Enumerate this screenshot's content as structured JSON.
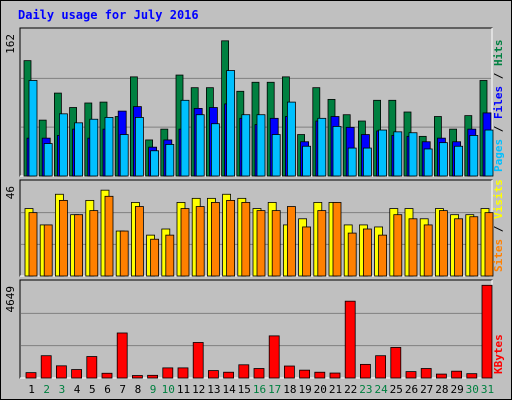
{
  "title": "Daily usage for July 2016",
  "colors": {
    "hits": "#008040",
    "files": "#0000ff",
    "pages": "#00c0ff",
    "visits": "#ffff00",
    "sites": "#ff8000",
    "kbytes": "#ff0000",
    "weekend_day_label": "#008040",
    "weekday_day_label": "#000000"
  },
  "chart_data": [
    {
      "type": "bar",
      "categories": [
        "1",
        "2",
        "3",
        "4",
        "5",
        "6",
        "7",
        "8",
        "9",
        "10",
        "11",
        "12",
        "13",
        "14",
        "15",
        "16",
        "17",
        "18",
        "19",
        "20",
        "21",
        "22",
        "23",
        "24",
        "25",
        "26",
        "27",
        "28",
        "29",
        "30",
        "31"
      ],
      "weekend_days": [
        "2",
        "3",
        "9",
        "10",
        "16",
        "17",
        "23",
        "24",
        "30",
        "31"
      ],
      "ylim": [
        0,
        162
      ],
      "ymax_label": "162",
      "series_labels": [
        "Pages",
        "Files",
        "Hits"
      ],
      "series": [
        {
          "name": "Hits",
          "values": [
            128,
            62,
            92,
            76,
            81,
            82,
            66,
            110,
            40,
            52,
            112,
            98,
            98,
            150,
            94,
            104,
            104,
            110,
            46,
            98,
            85,
            68,
            61,
            84,
            84,
            71,
            44,
            66,
            52,
            67,
            106
          ]
        },
        {
          "name": "Files",
          "values": [
            42,
            42,
            45,
            52,
            42,
            52,
            72,
            77,
            32,
            40,
            52,
            75,
            76,
            80,
            64,
            57,
            64,
            66,
            38,
            61,
            66,
            54,
            46,
            50,
            45,
            44,
            38,
            42,
            38,
            52,
            70
          ]
        },
        {
          "name": "Pages",
          "values": [
            106,
            36,
            69,
            59,
            63,
            65,
            46,
            65,
            28,
            35,
            84,
            68,
            58,
            117,
            68,
            68,
            46,
            82,
            33,
            64,
            55,
            31,
            31,
            51,
            49,
            48,
            30,
            37,
            33,
            45,
            51
          ]
        }
      ]
    },
    {
      "type": "bar",
      "categories": [
        "1",
        "2",
        "3",
        "4",
        "5",
        "6",
        "7",
        "8",
        "9",
        "10",
        "11",
        "12",
        "13",
        "14",
        "15",
        "16",
        "17",
        "18",
        "19",
        "20",
        "21",
        "22",
        "23",
        "24",
        "25",
        "26",
        "27",
        "28",
        "29",
        "30",
        "31"
      ],
      "ylim": [
        0,
        46
      ],
      "ymax_label": "46",
      "series_labels": [
        "Sites",
        "Visits"
      ],
      "series": [
        {
          "name": "Visits",
          "values": [
            33,
            25,
            40,
            30,
            37,
            42,
            22,
            36,
            20,
            23,
            36,
            38,
            38,
            40,
            38,
            33,
            36,
            25,
            28,
            36,
            36,
            25,
            25,
            24,
            33,
            33,
            28,
            33,
            30,
            30,
            33
          ]
        },
        {
          "name": "Sites",
          "values": [
            31,
            25,
            37,
            30,
            32,
            39,
            22,
            34,
            18,
            20,
            33,
            34,
            36,
            37,
            36,
            32,
            32,
            34,
            24,
            32,
            36,
            21,
            23,
            20,
            30,
            28,
            25,
            32,
            28,
            29,
            31
          ]
        }
      ]
    },
    {
      "type": "bar",
      "categories": [
        "1",
        "2",
        "3",
        "4",
        "5",
        "6",
        "7",
        "8",
        "9",
        "10",
        "11",
        "12",
        "13",
        "14",
        "15",
        "16",
        "17",
        "18",
        "19",
        "20",
        "21",
        "22",
        "23",
        "24",
        "25",
        "26",
        "27",
        "28",
        "29",
        "30",
        "31"
      ],
      "ylim": [
        0,
        4649
      ],
      "ymax_label": "4649",
      "series_labels": [
        "KBytes"
      ],
      "series": [
        {
          "name": "KBytes",
          "values": [
            260,
            1080,
            590,
            410,
            1040,
            230,
            2180,
            120,
            130,
            490,
            490,
            1720,
            360,
            280,
            640,
            460,
            2040,
            580,
            380,
            280,
            240,
            3720,
            660,
            1080,
            1480,
            310,
            460,
            190,
            330,
            210,
            4490
          ]
        }
      ]
    }
  ]
}
